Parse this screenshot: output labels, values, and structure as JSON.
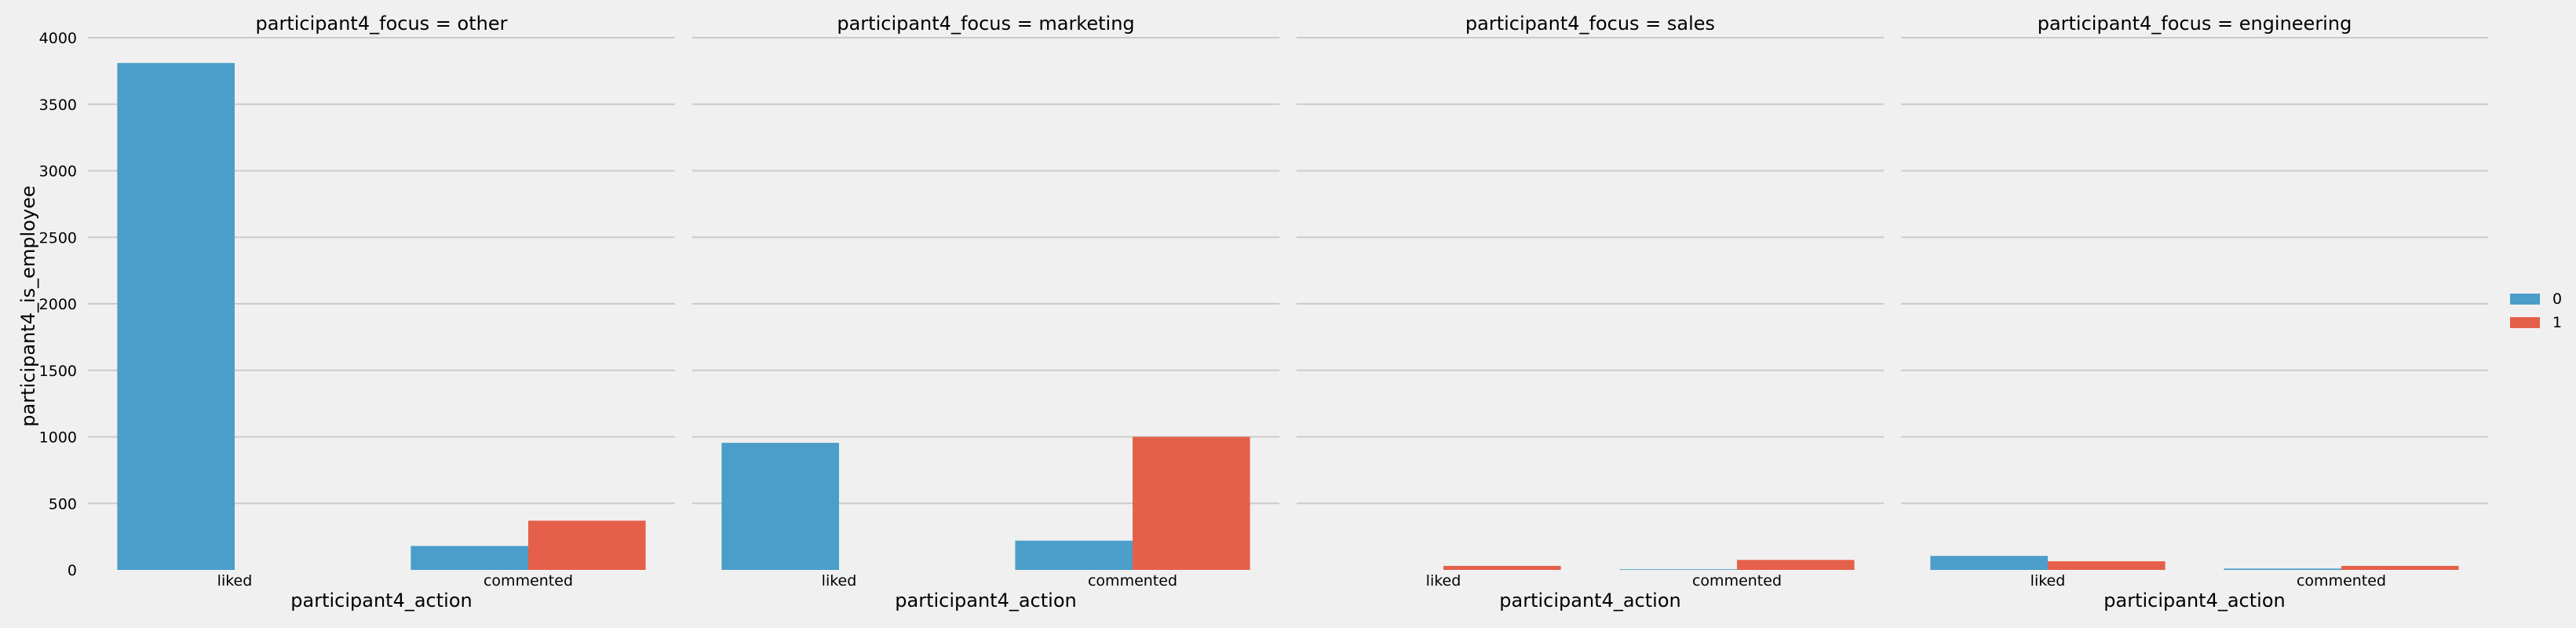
{
  "chart_data": {
    "type": "bar",
    "ylabel": "participant4_is_employee",
    "ylim": [
      0,
      4000
    ],
    "yticks": [
      0,
      500,
      1000,
      1500,
      2000,
      2500,
      3000,
      3500,
      4000
    ],
    "grid": true,
    "legend": {
      "placement": "right",
      "entries": [
        {
          "label": "0",
          "color": "#4a9ec9"
        },
        {
          "label": "1",
          "color": "#e5604a"
        }
      ]
    },
    "facets": [
      {
        "title": "participant4_focus = other",
        "xlabel": "participant4_action",
        "categories": [
          "liked",
          "commented"
        ],
        "series": [
          {
            "hue": "0",
            "values": [
              3810,
              180
            ]
          },
          {
            "hue": "1",
            "values": [
              0,
              370
            ]
          }
        ]
      },
      {
        "title": "participant4_focus = marketing",
        "xlabel": "participant4_action",
        "categories": [
          "liked",
          "commented"
        ],
        "series": [
          {
            "hue": "0",
            "values": [
              955,
              220
            ]
          },
          {
            "hue": "1",
            "values": [
              0,
              1000
            ]
          }
        ]
      },
      {
        "title": "participant4_focus = sales",
        "xlabel": "participant4_action",
        "categories": [
          "liked",
          "commented"
        ],
        "series": [
          {
            "hue": "0",
            "values": [
              0,
              5
            ]
          },
          {
            "hue": "1",
            "values": [
              30,
              75
            ]
          }
        ]
      },
      {
        "title": "participant4_focus = engineering",
        "xlabel": "participant4_action",
        "categories": [
          "liked",
          "commented"
        ],
        "series": [
          {
            "hue": "0",
            "values": [
              105,
              10
            ]
          },
          {
            "hue": "1",
            "values": [
              65,
              30
            ]
          }
        ]
      }
    ]
  }
}
